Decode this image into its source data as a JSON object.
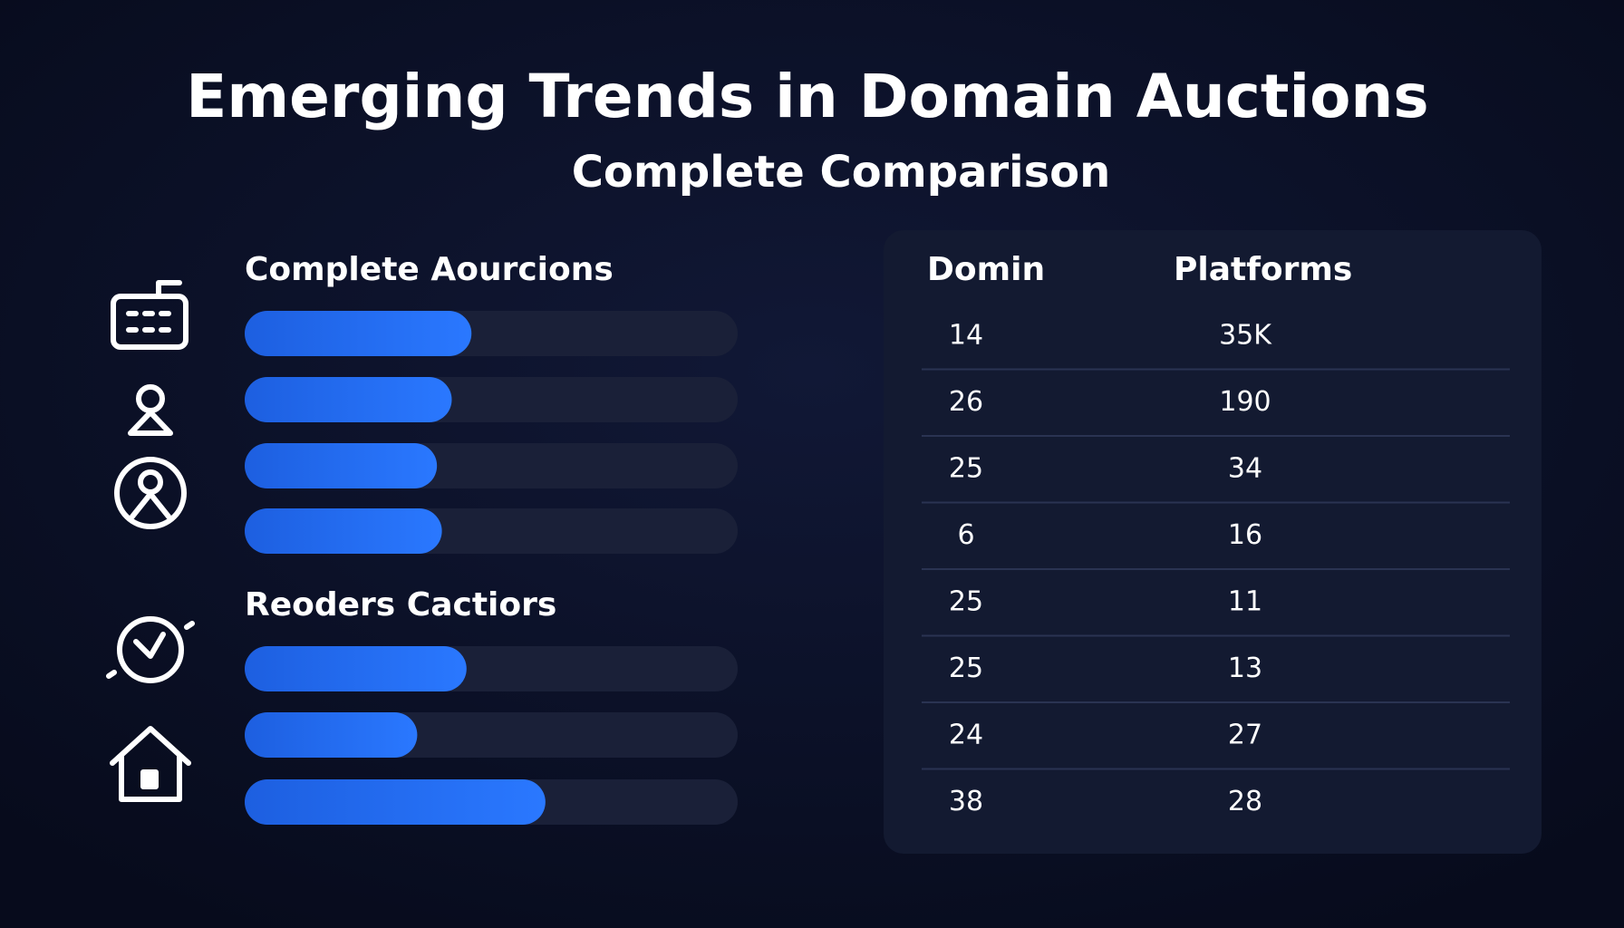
{
  "header": {
    "title": "Emerging Trends in Domain Auctions",
    "subtitle": "Complete Comparison"
  },
  "sections": [
    {
      "label": "Complete Aourcions",
      "bars": [
        46,
        42,
        39,
        40
      ]
    },
    {
      "label": "Reoders Cactiors",
      "bars": [
        45,
        35,
        61
      ]
    }
  ],
  "table": {
    "headers": [
      "Domin",
      "Platforms"
    ],
    "rows": [
      [
        "14",
        "35K"
      ],
      [
        "26",
        "190"
      ],
      [
        "25",
        "34"
      ],
      [
        "6",
        "16"
      ],
      [
        "25",
        "11"
      ],
      [
        "25",
        "13"
      ],
      [
        "24",
        "27"
      ],
      [
        "38",
        "28"
      ]
    ]
  }
}
